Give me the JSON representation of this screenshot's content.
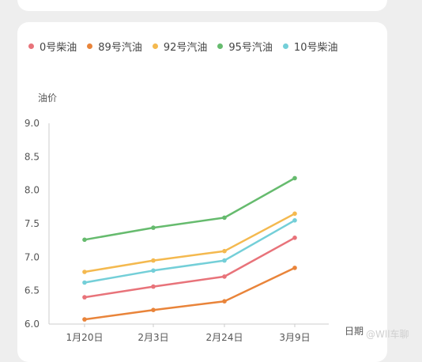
{
  "chart_data": {
    "type": "line",
    "categories": [
      "1月20日",
      "2月3日",
      "2月24日",
      "3月9日"
    ],
    "series": [
      {
        "name": "0号柴油",
        "color": "#e8737a",
        "values": [
          6.4,
          6.56,
          6.71,
          7.29
        ]
      },
      {
        "name": "89号汽油",
        "color": "#e9843a",
        "values": [
          6.07,
          6.21,
          6.34,
          6.84
        ]
      },
      {
        "name": "92号汽油",
        "color": "#f4b94f",
        "values": [
          6.78,
          6.95,
          7.09,
          7.65
        ]
      },
      {
        "name": "95号汽油",
        "color": "#66bb6e",
        "values": [
          7.26,
          7.44,
          7.59,
          8.18
        ]
      },
      {
        "name": "10号柴油",
        "color": "#74cfd8",
        "values": [
          6.62,
          6.8,
          6.95,
          7.55
        ]
      }
    ],
    "ylabel": "油价",
    "xlabel": "日期",
    "ylim": [
      6.0,
      9.0
    ],
    "yticks": [
      "6.0",
      "6.5",
      "7.0",
      "7.5",
      "8.0",
      "8.5",
      "9.0"
    ],
    "grid": false,
    "legend": "top-left"
  },
  "watermark": "@Wll车聊"
}
